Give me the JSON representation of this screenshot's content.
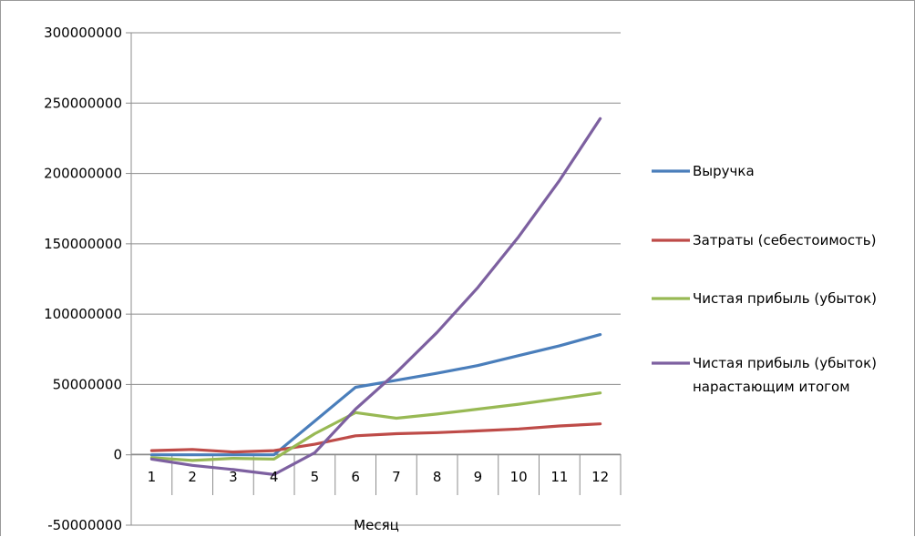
{
  "chart_data": {
    "type": "line",
    "title": "",
    "xlabel": "Месяц",
    "ylabel": "",
    "x": [
      1,
      2,
      3,
      4,
      5,
      6,
      7,
      8,
      9,
      10,
      11,
      12
    ],
    "categories": [
      "1",
      "2",
      "3",
      "4",
      "5",
      "6",
      "7",
      "8",
      "9",
      "10",
      "11",
      "12"
    ],
    "ylim": [
      -50000000,
      300000000
    ],
    "yticks": [
      -50000000,
      0,
      50000000,
      100000000,
      150000000,
      200000000,
      250000000,
      300000000
    ],
    "ytick_labels": [
      "-50000000",
      "0",
      "50000000",
      "100000000",
      "150000000",
      "200000000",
      "250000000",
      "300000000"
    ],
    "grid": "horizontal",
    "legend_position": "right",
    "series": [
      {
        "name": "Выручка",
        "color": "#4a7ebb",
        "values": [
          0,
          0,
          0,
          0,
          24000000,
          48000000,
          53000000,
          58000000,
          63500000,
          70500000,
          77500000,
          85500000
        ]
      },
      {
        "name": "Затраты (себестоимость)",
        "color": "#be4b48",
        "values": [
          3000000,
          3800000,
          2000000,
          3000000,
          7500000,
          13500000,
          15000000,
          15800000,
          17000000,
          18400000,
          20500000,
          22000000
        ]
      },
      {
        "name": "Чистая прибыль (убыток)",
        "color": "#98b954",
        "values": [
          -2000000,
          -4000000,
          -2500000,
          -3000000,
          15000000,
          30000000,
          26000000,
          29000000,
          32500000,
          36000000,
          40000000,
          44000000
        ]
      },
      {
        "name": "Чистая прибыль (убыток) нарастающим итогом",
        "color": "#7d60a0",
        "values": [
          -3000000,
          -7500000,
          -10500000,
          -14000000,
          1500000,
          32500000,
          58500000,
          87000000,
          119000000,
          155000000,
          195000000,
          239000000
        ]
      }
    ]
  },
  "legend": {
    "items": [
      {
        "lines": [
          "Выручка"
        ],
        "color": "#4a7ebb"
      },
      {
        "lines": [
          "Затраты (себестоимость)"
        ],
        "color": "#be4b48"
      },
      {
        "lines": [
          "Чистая прибыль (убыток)"
        ],
        "color": "#98b954"
      },
      {
        "lines": [
          "Чистая прибыль (убыток)",
          "нарастающим итогом"
        ],
        "color": "#7d60a0"
      }
    ]
  },
  "colors": {
    "grid": "#8c8c8c",
    "axis": "#8c8c8c",
    "frame": "#9a9a9a"
  }
}
